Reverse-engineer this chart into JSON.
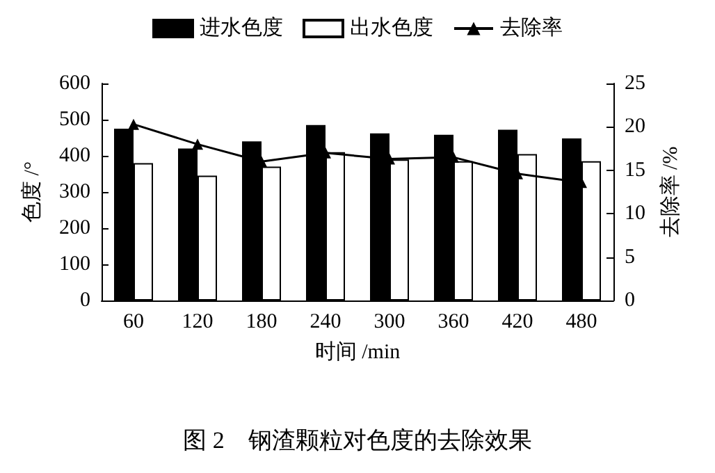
{
  "chart_data": {
    "type": "bar",
    "title": "图 2　钢渣颗粒对色度的去除效果",
    "xlabel": "时间 /min",
    "ylabel": "色度 /°",
    "y2label": "去除率 /%",
    "categories": [
      "60",
      "120",
      "180",
      "240",
      "300",
      "360",
      "420",
      "480"
    ],
    "series": [
      {
        "name": "进水色度",
        "color": "#000000",
        "values": [
          475,
          420,
          440,
          485,
          462,
          458,
          472,
          448
        ]
      },
      {
        "name": "出水色度",
        "color": "#ffffff",
        "values": [
          380,
          345,
          370,
          410,
          390,
          385,
          405,
          385
        ]
      },
      {
        "name": "去除率",
        "type": "line",
        "axis": "y2",
        "color": "#000000",
        "marker": "triangle",
        "values": [
          20.3,
          18,
          16,
          17,
          16.3,
          16.5,
          14.6,
          13.6
        ]
      }
    ],
    "ylim": [
      0,
      600
    ],
    "yticks": [
      0,
      100,
      200,
      300,
      400,
      500,
      600
    ],
    "y2lim": [
      0,
      25
    ],
    "y2ticks": [
      0,
      5,
      10,
      15,
      20,
      25
    ],
    "legend": "top",
    "grid": false
  }
}
